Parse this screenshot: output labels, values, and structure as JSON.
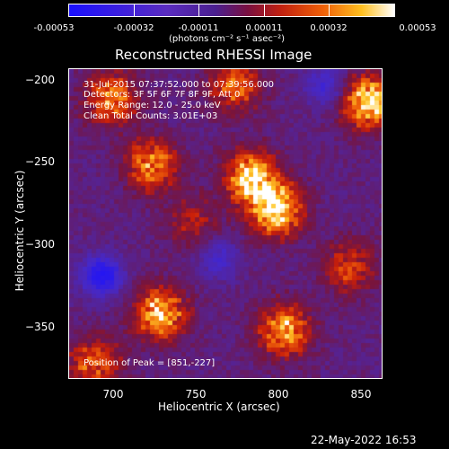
{
  "colorbar": {
    "tick_labels": [
      "-0.00053",
      "-0.00032",
      "-0.00011",
      "0.00011",
      "0.00032",
      "0.00053"
    ],
    "units": "(photons cm⁻² s⁻¹ asec⁻²)",
    "colors": [
      "#1a10ff",
      "#4a1f8f",
      "#c02010",
      "#ffc020",
      "#ffffff"
    ]
  },
  "chart_data": {
    "type": "heatmap",
    "title": "Reconstructed RHESSI Image",
    "xlabel": "Heliocentric X (arcsec)",
    "ylabel": "Heliocentric Y (arcsec)",
    "x_ticks": [
      "700",
      "750",
      "800",
      "850"
    ],
    "y_ticks": [
      "−200",
      "−250",
      "−300",
      "−350"
    ],
    "xlim": [
      670,
      860
    ],
    "ylim": [
      -385,
      -197
    ],
    "peak": [
      851,
      -227
    ],
    "sources": [
      {
        "x": 851,
        "y": -217,
        "intensity": 0.95
      },
      {
        "x": 795,
        "y": -282,
        "intensity": 1.0
      },
      {
        "x": 780,
        "y": -262,
        "intensity": 0.9
      },
      {
        "x": 725,
        "y": -345,
        "intensity": 0.85
      },
      {
        "x": 800,
        "y": -355,
        "intensity": 0.8
      },
      {
        "x": 720,
        "y": -255,
        "intensity": 0.7
      },
      {
        "x": 695,
        "y": -215,
        "intensity": 0.7
      },
      {
        "x": 770,
        "y": -207,
        "intensity": 0.6
      },
      {
        "x": 685,
        "y": -375,
        "intensity": 0.6
      },
      {
        "x": 840,
        "y": -317,
        "intensity": 0.5
      },
      {
        "x": 745,
        "y": -290,
        "intensity": 0.35
      }
    ],
    "negatives": [
      {
        "x": 690,
        "y": -322,
        "intensity": 0.9
      },
      {
        "x": 825,
        "y": -207,
        "intensity": 0.5
      },
      {
        "x": 760,
        "y": -312,
        "intensity": 0.45
      }
    ]
  },
  "annotations": {
    "time_range": "31-Jul-2015 07:37:52.000 to 07:39:56.000",
    "detectors": "Detectors: 3F 5F 6F 7F 8F 9F, Att 0",
    "energy": "Energy Range: 12.0 - 25.0 keV",
    "method": "Clean     Total Counts: 3.01E+03",
    "peak": "Position of Peak = [851,-227]"
  },
  "timestamp": "22-May-2022 16:53"
}
